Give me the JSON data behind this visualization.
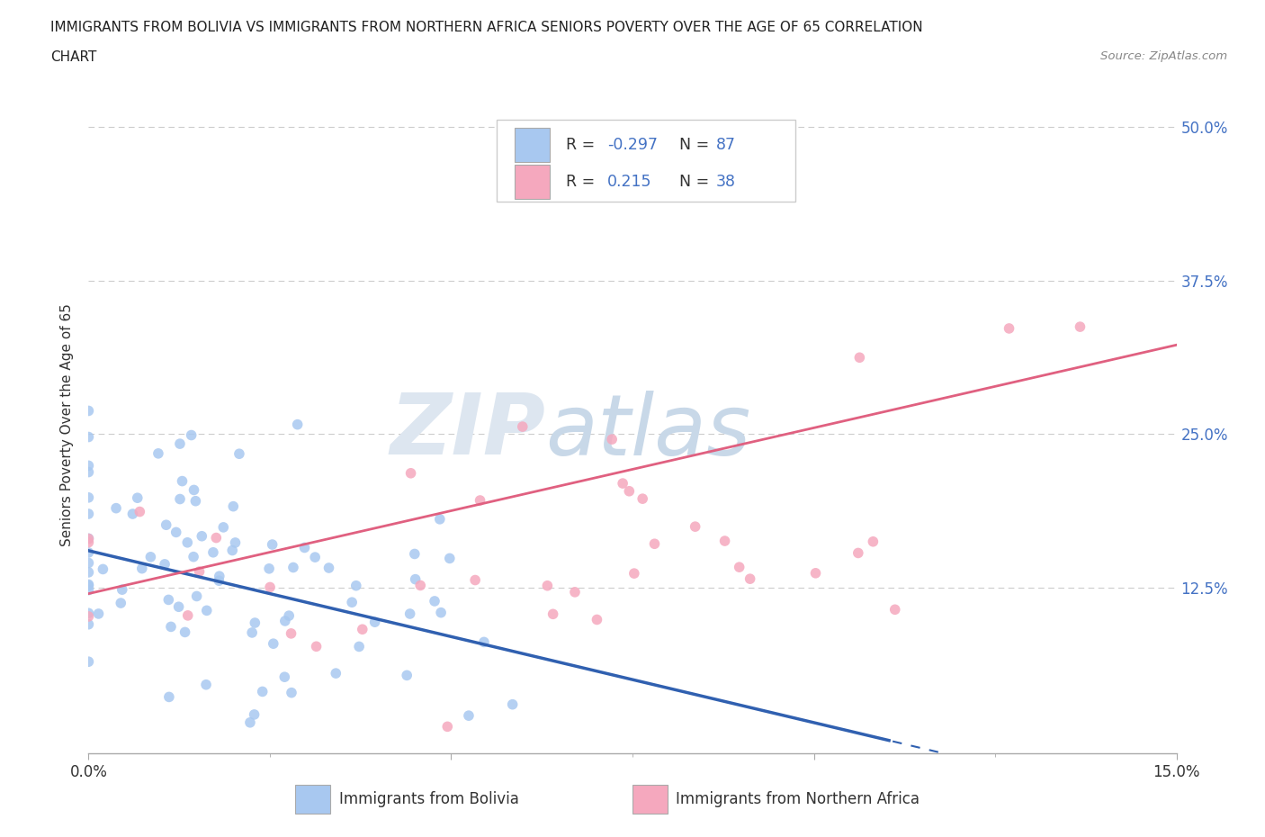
{
  "title_line1": "IMMIGRANTS FROM BOLIVIA VS IMMIGRANTS FROM NORTHERN AFRICA SENIORS POVERTY OVER THE AGE OF 65 CORRELATION",
  "title_line2": "CHART",
  "source": "Source: ZipAtlas.com",
  "ylabel": "Seniors Poverty Over the Age of 65",
  "bolivia_R": -0.297,
  "bolivia_N": 87,
  "northern_africa_R": 0.215,
  "northern_africa_N": 38,
  "bolivia_color": "#a8c8f0",
  "northern_africa_color": "#f5a8be",
  "bolivia_line_color": "#3060b0",
  "northern_africa_line_color": "#e06080",
  "xlim": [
    0.0,
    0.15
  ],
  "ylim": [
    -0.01,
    0.525
  ],
  "y_ticks": [
    0.0,
    0.125,
    0.25,
    0.375,
    0.5
  ],
  "y_tick_labels_right": [
    "",
    "12.5%",
    "25.0%",
    "37.5%",
    "50.0%"
  ],
  "watermark_zip": "ZIP",
  "watermark_atlas": "atlas",
  "legend_labels": [
    "Immigrants from Bolivia",
    "Immigrants from Northern Africa"
  ],
  "background_color": "#ffffff",
  "grid_color": "#cccccc"
}
